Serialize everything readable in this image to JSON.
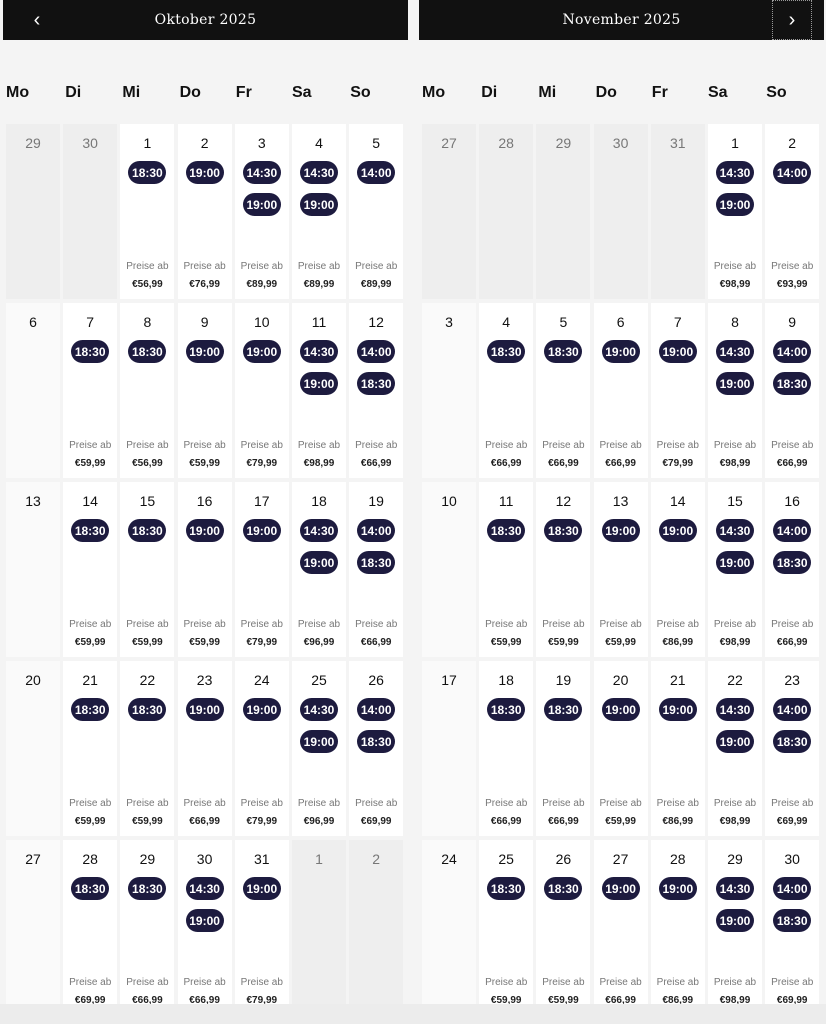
{
  "months": [
    {
      "title": "Oktober 2025",
      "nav": "‹",
      "weekdays": [
        "Mo",
        "Di",
        "Mi",
        "Do",
        "Fr",
        "Sa",
        "So"
      ],
      "weeks": [
        [
          {
            "d": "29",
            "out": true
          },
          {
            "d": "30",
            "out": true
          },
          {
            "d": "1",
            "times": [
              "18:30"
            ],
            "label": "Preise ab",
            "price": "€56,99"
          },
          {
            "d": "2",
            "times": [
              "19:00"
            ],
            "label": "Preise ab",
            "price": "€76,99"
          },
          {
            "d": "3",
            "times": [
              "14:30",
              "19:00"
            ],
            "label": "Preise ab",
            "price": "€89,99"
          },
          {
            "d": "4",
            "times": [
              "14:30",
              "19:00"
            ],
            "label": "Preise ab",
            "price": "€89,99"
          },
          {
            "d": "5",
            "times": [
              "14:00"
            ],
            "label": "Preise ab",
            "price": "€89,99"
          }
        ],
        [
          {
            "d": "6",
            "plain": true
          },
          {
            "d": "7",
            "times": [
              "18:30"
            ],
            "label": "Preise ab",
            "price": "€59,99"
          },
          {
            "d": "8",
            "times": [
              "18:30"
            ],
            "label": "Preise ab",
            "price": "€56,99"
          },
          {
            "d": "9",
            "times": [
              "19:00"
            ],
            "label": "Preise ab",
            "price": "€59,99"
          },
          {
            "d": "10",
            "times": [
              "19:00"
            ],
            "label": "Preise ab",
            "price": "€79,99"
          },
          {
            "d": "11",
            "times": [
              "14:30",
              "19:00"
            ],
            "label": "Preise ab",
            "price": "€98,99"
          },
          {
            "d": "12",
            "times": [
              "14:00",
              "18:30"
            ],
            "label": "Preise ab",
            "price": "€66,99"
          }
        ],
        [
          {
            "d": "13",
            "plain": true
          },
          {
            "d": "14",
            "times": [
              "18:30"
            ],
            "label": "Preise ab",
            "price": "€59,99"
          },
          {
            "d": "15",
            "times": [
              "18:30"
            ],
            "label": "Preise ab",
            "price": "€59,99"
          },
          {
            "d": "16",
            "times": [
              "19:00"
            ],
            "label": "Preise ab",
            "price": "€59,99"
          },
          {
            "d": "17",
            "times": [
              "19:00"
            ],
            "label": "Preise ab",
            "price": "€79,99"
          },
          {
            "d": "18",
            "times": [
              "14:30",
              "19:00"
            ],
            "label": "Preise ab",
            "price": "€96,99"
          },
          {
            "d": "19",
            "times": [
              "14:00",
              "18:30"
            ],
            "label": "Preise ab",
            "price": "€66,99"
          }
        ],
        [
          {
            "d": "20",
            "plain": true
          },
          {
            "d": "21",
            "times": [
              "18:30"
            ],
            "label": "Preise ab",
            "price": "€59,99"
          },
          {
            "d": "22",
            "times": [
              "18:30"
            ],
            "label": "Preise ab",
            "price": "€59,99"
          },
          {
            "d": "23",
            "times": [
              "19:00"
            ],
            "label": "Preise ab",
            "price": "€66,99"
          },
          {
            "d": "24",
            "times": [
              "19:00"
            ],
            "label": "Preise ab",
            "price": "€79,99"
          },
          {
            "d": "25",
            "times": [
              "14:30",
              "19:00"
            ],
            "label": "Preise ab",
            "price": "€96,99"
          },
          {
            "d": "26",
            "times": [
              "14:00",
              "18:30"
            ],
            "label": "Preise ab",
            "price": "€69,99"
          }
        ],
        [
          {
            "d": "27",
            "plain": true
          },
          {
            "d": "28",
            "times": [
              "18:30"
            ],
            "label": "Preise ab",
            "price": "€69,99"
          },
          {
            "d": "29",
            "times": [
              "18:30"
            ],
            "label": "Preise ab",
            "price": "€66,99"
          },
          {
            "d": "30",
            "times": [
              "14:30",
              "19:00"
            ],
            "label": "Preise ab",
            "price": "€66,99"
          },
          {
            "d": "31",
            "times": [
              "19:00"
            ],
            "label": "Preise ab",
            "price": "€79,99"
          },
          {
            "d": "1",
            "out": true
          },
          {
            "d": "2",
            "out": true
          }
        ]
      ]
    },
    {
      "title": "November 2025",
      "nav": "›",
      "weekdays": [
        "Mo",
        "Di",
        "Mi",
        "Do",
        "Fr",
        "Sa",
        "So"
      ],
      "weeks": [
        [
          {
            "d": "27",
            "out": true
          },
          {
            "d": "28",
            "out": true
          },
          {
            "d": "29",
            "out": true
          },
          {
            "d": "30",
            "out": true
          },
          {
            "d": "31",
            "out": true
          },
          {
            "d": "1",
            "times": [
              "14:30",
              "19:00"
            ],
            "label": "Preise ab",
            "price": "€98,99"
          },
          {
            "d": "2",
            "times": [
              "14:00"
            ],
            "label": "Preise ab",
            "price": "€93,99"
          }
        ],
        [
          {
            "d": "3",
            "plain": true
          },
          {
            "d": "4",
            "times": [
              "18:30"
            ],
            "label": "Preise ab",
            "price": "€66,99"
          },
          {
            "d": "5",
            "times": [
              "18:30"
            ],
            "label": "Preise ab",
            "price": "€66,99"
          },
          {
            "d": "6",
            "times": [
              "19:00"
            ],
            "label": "Preise ab",
            "price": "€66,99"
          },
          {
            "d": "7",
            "times": [
              "19:00"
            ],
            "label": "Preise ab",
            "price": "€79,99"
          },
          {
            "d": "8",
            "times": [
              "14:30",
              "19:00"
            ],
            "label": "Preise ab",
            "price": "€98,99"
          },
          {
            "d": "9",
            "times": [
              "14:00",
              "18:30"
            ],
            "label": "Preise ab",
            "price": "€66,99"
          }
        ],
        [
          {
            "d": "10",
            "plain": true
          },
          {
            "d": "11",
            "times": [
              "18:30"
            ],
            "label": "Preise ab",
            "price": "€59,99"
          },
          {
            "d": "12",
            "times": [
              "18:30"
            ],
            "label": "Preise ab",
            "price": "€59,99"
          },
          {
            "d": "13",
            "times": [
              "19:00"
            ],
            "label": "Preise ab",
            "price": "€59,99"
          },
          {
            "d": "14",
            "times": [
              "19:00"
            ],
            "label": "Preise ab",
            "price": "€86,99"
          },
          {
            "d": "15",
            "times": [
              "14:30",
              "19:00"
            ],
            "label": "Preise ab",
            "price": "€98,99"
          },
          {
            "d": "16",
            "times": [
              "14:00",
              "18:30"
            ],
            "label": "Preise ab",
            "price": "€66,99"
          }
        ],
        [
          {
            "d": "17",
            "plain": true
          },
          {
            "d": "18",
            "times": [
              "18:30"
            ],
            "label": "Preise ab",
            "price": "€66,99"
          },
          {
            "d": "19",
            "times": [
              "18:30"
            ],
            "label": "Preise ab",
            "price": "€66,99"
          },
          {
            "d": "20",
            "times": [
              "19:00"
            ],
            "label": "Preise ab",
            "price": "€59,99"
          },
          {
            "d": "21",
            "times": [
              "19:00"
            ],
            "label": "Preise ab",
            "price": "€86,99"
          },
          {
            "d": "22",
            "times": [
              "14:30",
              "19:00"
            ],
            "label": "Preise ab",
            "price": "€98,99"
          },
          {
            "d": "23",
            "times": [
              "14:00",
              "18:30"
            ],
            "label": "Preise ab",
            "price": "€69,99"
          }
        ],
        [
          {
            "d": "24",
            "plain": true
          },
          {
            "d": "25",
            "times": [
              "18:30"
            ],
            "label": "Preise ab",
            "price": "€59,99"
          },
          {
            "d": "26",
            "times": [
              "18:30"
            ],
            "label": "Preise ab",
            "price": "€59,99"
          },
          {
            "d": "27",
            "times": [
              "19:00"
            ],
            "label": "Preise ab",
            "price": "€66,99"
          },
          {
            "d": "28",
            "times": [
              "19:00"
            ],
            "label": "Preise ab",
            "price": "€86,99"
          },
          {
            "d": "29",
            "times": [
              "14:30",
              "19:00"
            ],
            "label": "Preise ab",
            "price": "€98,99"
          },
          {
            "d": "30",
            "times": [
              "14:00",
              "18:30"
            ],
            "label": "Preise ab",
            "price": "€69,99"
          }
        ]
      ]
    }
  ]
}
